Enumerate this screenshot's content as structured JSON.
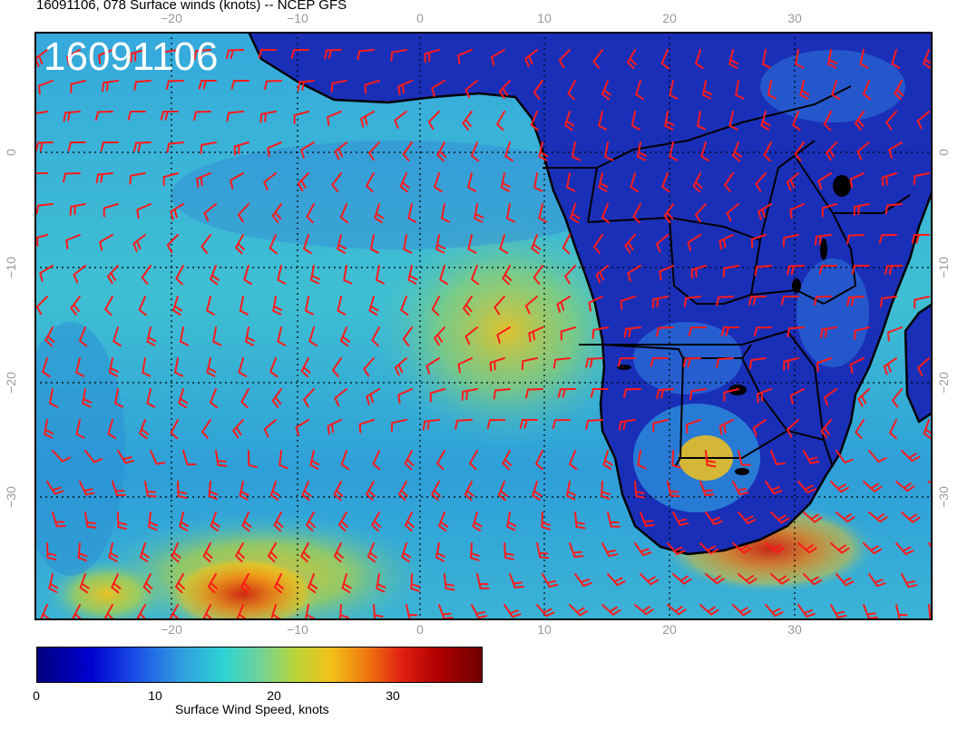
{
  "title": "16091106, 078 Surface winds (knots) -- NCEP GFS",
  "stamp": "16091106",
  "axes": {
    "lon_ticks": [
      "−20",
      "−10",
      "0",
      "10",
      "20",
      "30"
    ],
    "lat_ticks": [
      "0",
      "−10",
      "−20",
      "−30"
    ]
  },
  "colorbar": {
    "title": "Surface Wind Speed, knots",
    "labels": [
      "0",
      "10",
      "20",
      "30"
    ],
    "colors": [
      "#000080",
      "#1a4de6",
      "#2ed3d3",
      "#b8d43a",
      "#f07a10",
      "#b00000",
      "#700000"
    ]
  },
  "colors": {
    "ocean_base": "#2fa3d9",
    "land_base": "#1a2fb8",
    "barb": "#ff1a1a",
    "coast": "#000000"
  }
}
